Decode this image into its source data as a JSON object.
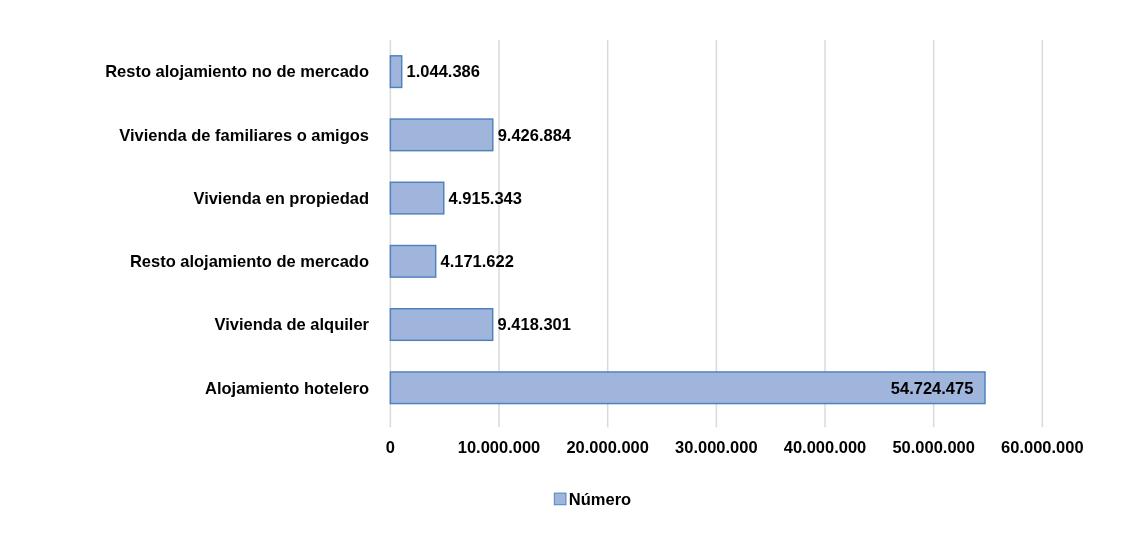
{
  "chart_data": {
    "type": "bar",
    "orientation": "horizontal",
    "categories": [
      "Resto alojamiento no de mercado",
      "Vivienda de familiares o amigos",
      "Vivienda en propiedad",
      "Resto alojamiento de mercado",
      "Vivienda de alquiler",
      "Alojamiento hotelero"
    ],
    "series": [
      {
        "name": "Número",
        "color": "#9fb5dc",
        "values": [
          1044386,
          9426884,
          4915343,
          4171622,
          9418301,
          54724475
        ],
        "value_labels": [
          "1.044.386",
          "9.426.884",
          "4.915.343",
          "4.171.622",
          "9.418.301",
          "54.724.475"
        ]
      }
    ],
    "xlim": [
      0,
      60000000
    ],
    "xticks": [
      0,
      {
        "value": 10000000,
        "label": "10.000.000"
      },
      {
        "value": 20000000,
        "label": "20.000.000"
      },
      {
        "value": 30000000,
        "label": "30.000.000"
      },
      {
        "value": 40000000,
        "label": "40.000.000"
      },
      {
        "value": 50000000,
        "label": "50.000.000"
      },
      {
        "value": 60000000,
        "label": "60.000.000"
      }
    ],
    "grid": "x",
    "legend": "bottom"
  }
}
